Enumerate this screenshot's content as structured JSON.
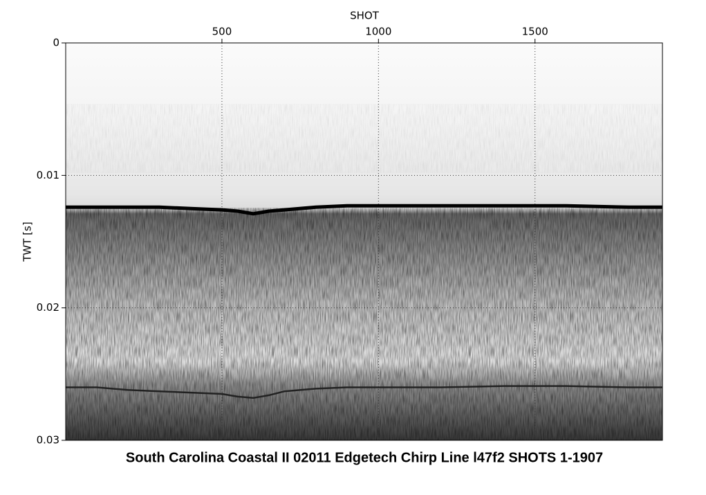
{
  "chart_data": {
    "type": "seismic",
    "title": "South Carolina Coastal II 02011 Edgetech Chirp Line l47f2 SHOTS 1-1907",
    "x_label": "SHOT",
    "y_label": "TWT [s]",
    "xlim": [
      1,
      1907
    ],
    "xticks": [
      500,
      1000,
      1500
    ],
    "ylim": [
      0,
      0.03
    ],
    "yticks": [
      0,
      0.01,
      0.02,
      0.03
    ],
    "y_inverted": true,
    "grid": true,
    "series": [
      {
        "color": "#000000",
        "x": [
          1,
          100,
          200,
          300,
          400,
          500,
          550,
          600,
          650,
          700,
          800,
          900,
          1000,
          1200,
          1400,
          1600,
          1800,
          1907
        ],
        "values": [
          0.0124,
          0.0124,
          0.0124,
          0.0124,
          0.0125,
          0.0126,
          0.0127,
          0.0129,
          0.0127,
          0.0126,
          0.0124,
          0.0123,
          0.0123,
          0.0123,
          0.0123,
          0.0123,
          0.0124,
          0.0124
        ]
      },
      {
        "color": "#222222",
        "x": [
          1,
          100,
          200,
          300,
          400,
          500,
          550,
          600,
          650,
          700,
          800,
          900,
          1000,
          1200,
          1400,
          1600,
          1800,
          1907
        ],
        "values": [
          0.026,
          0.026,
          0.0262,
          0.0263,
          0.0264,
          0.0265,
          0.0267,
          0.0268,
          0.0266,
          0.0263,
          0.0261,
          0.026,
          0.026,
          0.026,
          0.0259,
          0.0259,
          0.026,
          0.026
        ]
      }
    ]
  }
}
